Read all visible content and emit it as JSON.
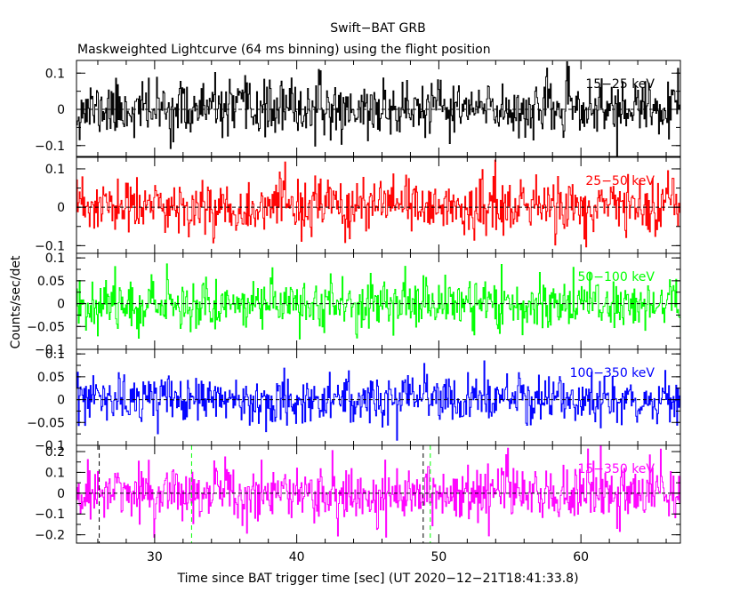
{
  "chart_data": {
    "type": "line",
    "title": "Swift−BAT GRB",
    "subtitle": "Maskweighted Lightcurve (64 ms binning) using the flight position",
    "xlabel": "Time since BAT trigger time [sec] (UT 2020−12−21T18:41:33.8)",
    "ylabel": "Counts/sec/det",
    "xlim": [
      24.5,
      67
    ],
    "x_ticks": [
      30,
      40,
      50,
      60
    ],
    "bin_width_sec": 0.064,
    "panels": [
      {
        "name": "15−25 keV",
        "color": "#000000",
        "ylim": [
          -0.13,
          0.135
        ],
        "y_ticks": [
          {
            "v": 0.1,
            "label": "0.1"
          },
          {
            "v": 0,
            "label": "0"
          },
          {
            "v": -0.1,
            "label": "−0.1"
          }
        ],
        "y_minor": [
          -0.1,
          -0.05,
          0,
          0.05,
          0.1
        ],
        "noise_sigma": 0.038,
        "seed": 11
      },
      {
        "name": "25−50 keV",
        "color": "#ff0000",
        "ylim": [
          -0.12,
          0.13
        ],
        "y_ticks": [
          {
            "v": 0.1,
            "label": "0.1"
          },
          {
            "v": 0,
            "label": "0"
          },
          {
            "v": -0.1,
            "label": "−0.1"
          }
        ],
        "y_minor": [
          -0.1,
          -0.05,
          0,
          0.05,
          0.1
        ],
        "noise_sigma": 0.036,
        "seed": 23
      },
      {
        "name": "50−100 keV",
        "color": "#00ff00",
        "ylim": [
          -0.1,
          0.11
        ],
        "y_ticks": [
          {
            "v": 0.1,
            "label": "0.1"
          },
          {
            "v": 0.05,
            "label": "0.05"
          },
          {
            "v": 0,
            "label": "0"
          },
          {
            "v": -0.05,
            "label": "−0.05"
          },
          {
            "v": -0.1,
            "label": "−0.1"
          }
        ],
        "y_minor": [
          -0.1,
          -0.075,
          -0.05,
          -0.025,
          0,
          0.025,
          0.05,
          0.075,
          0.1
        ],
        "noise_sigma": 0.028,
        "seed": 37
      },
      {
        "name": "100−350 keV",
        "color": "#0000ff",
        "ylim": [
          -0.1,
          0.11
        ],
        "y_ticks": [
          {
            "v": 0.1,
            "label": "0.1"
          },
          {
            "v": 0.05,
            "label": "0.05"
          },
          {
            "v": 0,
            "label": "0"
          },
          {
            "v": -0.05,
            "label": "−0.05"
          },
          {
            "v": -0.1,
            "label": "−0.1"
          }
        ],
        "y_minor": [
          -0.1,
          -0.075,
          -0.05,
          -0.025,
          0,
          0.025,
          0.05,
          0.075,
          0.1
        ],
        "noise_sigma": 0.026,
        "seed": 53
      },
      {
        "name": "15−350 keV",
        "color": "#ff00ff",
        "ylim": [
          -0.24,
          0.23
        ],
        "y_ticks": [
          {
            "v": 0.2,
            "label": "0.2"
          },
          {
            "v": 0.1,
            "label": "0.1"
          },
          {
            "v": 0,
            "label": "0"
          },
          {
            "v": -0.1,
            "label": "−0.1"
          },
          {
            "v": -0.2,
            "label": "−0.2"
          }
        ],
        "y_minor": [
          -0.2,
          -0.15,
          -0.1,
          -0.05,
          0,
          0.05,
          0.1,
          0.15,
          0.2
        ],
        "noise_sigma": 0.07,
        "seed": 71
      }
    ],
    "markers": [
      {
        "x": 26.1,
        "color": "#000000",
        "style": "dashed"
      },
      {
        "x": 32.6,
        "color": "#00ff00",
        "style": "dashed"
      },
      {
        "x": 48.9,
        "color": "#000000",
        "style": "dashed"
      },
      {
        "x": 49.4,
        "color": "#00ff00",
        "style": "dashed"
      }
    ],
    "zero_line": true,
    "grid": false
  }
}
